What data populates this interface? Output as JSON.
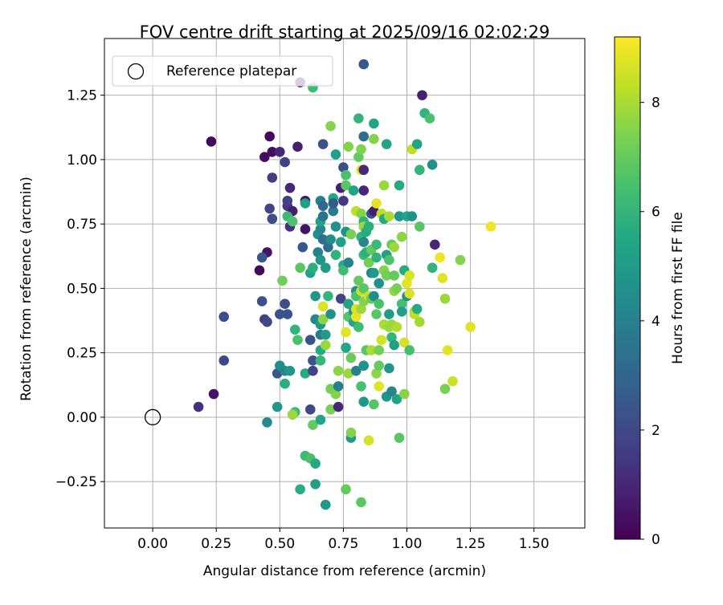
{
  "chart_data": {
    "type": "scatter",
    "title": "FOV centre drift starting at 2025/09/16 02:02:29",
    "xlabel": "Angular distance from reference (arcmin)",
    "ylabel": "Rotation from reference (arcmin)",
    "xlim": [
      -0.19,
      1.7
    ],
    "ylim": [
      -0.43,
      1.47
    ],
    "xticks": [
      0.0,
      0.25,
      0.5,
      0.75,
      1.0,
      1.25,
      1.5
    ],
    "xtick_labels": [
      "0.00",
      "0.25",
      "0.50",
      "0.75",
      "1.00",
      "1.25",
      "1.50"
    ],
    "yticks": [
      -0.25,
      0.0,
      0.25,
      0.5,
      0.75,
      1.0,
      1.25
    ],
    "ytick_labels": [
      "−0.25",
      "0.00",
      "0.25",
      "0.50",
      "0.75",
      "1.00",
      "1.25"
    ],
    "grid": true,
    "legend": {
      "placement": "top-left",
      "label": "Reference platepar"
    },
    "reference_point": {
      "x": 0.0,
      "y": 0.0
    },
    "colorbar": {
      "label": "Hours from first FF file",
      "colormap": "viridis",
      "range": [
        0,
        9.2
      ],
      "ticks": [
        0,
        2,
        4,
        6,
        8
      ],
      "tick_labels": [
        "0",
        "2",
        "4",
        "6",
        "8"
      ]
    },
    "points": [
      [
        0.23,
        1.07,
        0.2
      ],
      [
        0.24,
        0.09,
        0.5
      ],
      [
        0.18,
        0.04,
        1.3
      ],
      [
        0.28,
        0.39,
        2.1
      ],
      [
        0.28,
        0.22,
        2.0
      ],
      [
        0.42,
        0.57,
        0.2
      ],
      [
        0.44,
        1.01,
        0.3
      ],
      [
        0.46,
        1.09,
        0.2
      ],
      [
        0.47,
        1.03,
        0.3
      ],
      [
        0.45,
        0.64,
        0.5
      ],
      [
        0.43,
        0.62,
        2.5
      ],
      [
        0.43,
        0.45,
        2.2
      ],
      [
        0.44,
        0.38,
        1.8
      ],
      [
        0.45,
        0.37,
        2.0
      ],
      [
        0.46,
        0.81,
        1.8
      ],
      [
        0.47,
        0.93,
        1.7
      ],
      [
        0.47,
        0.77,
        2.2
      ],
      [
        0.5,
        1.03,
        1.0
      ],
      [
        0.52,
        0.99,
        1.8
      ],
      [
        0.53,
        0.82,
        1.5
      ],
      [
        0.54,
        0.89,
        1.0
      ],
      [
        0.55,
        0.8,
        0.8
      ],
      [
        0.54,
        0.74,
        1.3
      ],
      [
        0.57,
        1.05,
        0.8
      ],
      [
        0.58,
        1.3,
        0.4
      ],
      [
        0.6,
        0.84,
        0.4
      ],
      [
        0.6,
        0.73,
        0.5
      ],
      [
        0.52,
        0.44,
        2.2
      ],
      [
        0.5,
        0.4,
        2.3
      ],
      [
        0.53,
        0.4,
        2.4
      ],
      [
        0.49,
        0.17,
        2.5
      ],
      [
        0.5,
        0.2,
        4.5
      ],
      [
        0.52,
        0.18,
        4.2
      ],
      [
        0.54,
        0.18,
        4.8
      ],
      [
        0.52,
        0.13,
        5.8
      ],
      [
        0.49,
        0.04,
        4.9
      ],
      [
        0.45,
        -0.02,
        4.4
      ],
      [
        0.51,
        0.53,
        7.2
      ],
      [
        0.53,
        0.84,
        1.8
      ],
      [
        0.53,
        0.78,
        6.2
      ],
      [
        0.55,
        0.76,
        6.6
      ],
      [
        0.56,
        0.34,
        6.0
      ],
      [
        0.57,
        0.3,
        6.5
      ],
      [
        0.56,
        0.02,
        6.2
      ],
      [
        0.55,
        0.01,
        7.8
      ],
      [
        0.58,
        0.58,
        6.8
      ],
      [
        0.59,
        0.66,
        2.5
      ],
      [
        0.6,
        0.83,
        5.2
      ],
      [
        0.6,
        0.17,
        5.6
      ],
      [
        0.58,
        -0.28,
        5.7
      ],
      [
        0.6,
        -0.15,
        6.2
      ],
      [
        0.62,
        -0.16,
        6.5
      ],
      [
        0.63,
        -0.03,
        7.0
      ],
      [
        0.64,
        -0.18,
        5.5
      ],
      [
        0.64,
        -0.26,
        5.2
      ],
      [
        0.68,
        -0.34,
        4.9
      ],
      [
        0.62,
        0.03,
        2.0
      ],
      [
        0.62,
        0.3,
        2.3
      ],
      [
        0.63,
        0.22,
        2.3
      ],
      [
        0.63,
        0.18,
        1.8
      ],
      [
        0.62,
        0.56,
        5.2
      ],
      [
        0.63,
        0.58,
        5.8
      ],
      [
        0.63,
        1.28,
        6.3
      ],
      [
        0.64,
        0.47,
        4.8
      ],
      [
        0.64,
        0.38,
        4.2
      ],
      [
        0.65,
        0.64,
        4.0
      ],
      [
        0.65,
        0.71,
        4.5
      ],
      [
        0.66,
        0.73,
        4.2
      ],
      [
        0.66,
        0.76,
        5.3
      ],
      [
        0.66,
        0.84,
        4.0
      ],
      [
        0.67,
        0.82,
        3.0
      ],
      [
        0.67,
        0.78,
        3.5
      ],
      [
        0.67,
        0.69,
        3.3
      ],
      [
        0.67,
        1.06,
        2.3
      ],
      [
        0.66,
        0.61,
        4.8
      ],
      [
        0.66,
        0.32,
        3.8
      ],
      [
        0.66,
        0.26,
        5.6
      ],
      [
        0.66,
        0.22,
        6.1
      ],
      [
        0.66,
        -0.01,
        5.4
      ],
      [
        0.66,
        0.36,
        5.0
      ],
      [
        0.67,
        0.43,
        8.7
      ],
      [
        0.67,
        0.38,
        7.6
      ],
      [
        0.68,
        0.28,
        7.8
      ],
      [
        0.68,
        0.32,
        5.0
      ],
      [
        0.68,
        0.58,
        5.0
      ],
      [
        0.69,
        0.47,
        6.0
      ],
      [
        0.69,
        0.66,
        3.2
      ],
      [
        0.7,
        0.69,
        4.5
      ],
      [
        0.7,
        0.4,
        4.6
      ],
      [
        0.7,
        1.13,
        7.5
      ],
      [
        0.7,
        0.11,
        7.2
      ],
      [
        0.7,
        0.03,
        7.3
      ],
      [
        0.71,
        0.8,
        3.8
      ],
      [
        0.71,
        0.85,
        5.5
      ],
      [
        0.72,
        1.02,
        5.2
      ],
      [
        0.71,
        0.83,
        2.6
      ],
      [
        0.72,
        0.63,
        5.9
      ],
      [
        0.72,
        0.74,
        4.6
      ],
      [
        0.72,
        0.09,
        7.5
      ],
      [
        0.73,
        0.18,
        7.6
      ],
      [
        0.73,
        0.04,
        1.0
      ],
      [
        0.73,
        0.12,
        4.0
      ],
      [
        0.74,
        0.68,
        5.2
      ],
      [
        0.74,
        0.46,
        1.8
      ],
      [
        0.74,
        0.89,
        0.8
      ],
      [
        0.75,
        0.97,
        2.2
      ],
      [
        0.75,
        0.84,
        1.5
      ],
      [
        0.75,
        0.59,
        5.6
      ],
      [
        0.75,
        0.57,
        6.3
      ],
      [
        0.76,
        0.9,
        6.8
      ],
      [
        0.76,
        0.94,
        6.5
      ],
      [
        0.76,
        0.72,
        4.6
      ],
      [
        0.76,
        0.27,
        5.5
      ],
      [
        0.76,
        -0.28,
        7.0
      ],
      [
        0.76,
        0.33,
        8.8
      ],
      [
        0.77,
        1.05,
        7.5
      ],
      [
        0.77,
        0.6,
        4.0
      ],
      [
        0.77,
        0.44,
        5.4
      ],
      [
        0.77,
        0.17,
        7.8
      ],
      [
        0.77,
        0.39,
        6.7
      ],
      [
        0.78,
        0.71,
        7.3
      ],
      [
        0.78,
        0.23,
        7.1
      ],
      [
        0.78,
        -0.08,
        5.0
      ],
      [
        0.78,
        -0.06,
        7.5
      ],
      [
        0.79,
        0.88,
        5.3
      ],
      [
        0.79,
        0.41,
        4.8
      ],
      [
        0.79,
        0.37,
        5.5
      ],
      [
        0.8,
        0.8,
        8.3
      ],
      [
        0.8,
        0.39,
        8.9
      ],
      [
        0.8,
        0.42,
        8.7
      ],
      [
        0.8,
        0.49,
        4.4
      ],
      [
        0.8,
        0.18,
        4.0
      ],
      [
        0.8,
        0.47,
        6.5
      ],
      [
        0.81,
        1.16,
        6.0
      ],
      [
        0.81,
        1.01,
        7.0
      ],
      [
        0.81,
        0.53,
        7.0
      ],
      [
        0.81,
        0.35,
        6.3
      ],
      [
        0.82,
        1.04,
        7.4
      ],
      [
        0.82,
        0.96,
        8.8
      ],
      [
        0.82,
        0.79,
        7.5
      ],
      [
        0.82,
        0.7,
        6.0
      ],
      [
        0.82,
        0.49,
        8.5
      ],
      [
        0.82,
        0.42,
        7.8
      ],
      [
        0.82,
        0.12,
        6.5
      ],
      [
        0.82,
        -0.33,
        6.8
      ],
      [
        0.83,
        1.37,
        2.5
      ],
      [
        0.83,
        1.09,
        3.4
      ],
      [
        0.83,
        0.96,
        1.0
      ],
      [
        0.83,
        0.88,
        1.0
      ],
      [
        0.83,
        0.76,
        5.9
      ],
      [
        0.83,
        0.74,
        7.8
      ],
      [
        0.83,
        0.68,
        4.2
      ],
      [
        0.83,
        0.63,
        6.2
      ],
      [
        0.83,
        0.5,
        6.8
      ],
      [
        0.83,
        0.45,
        7.5
      ],
      [
        0.83,
        0.2,
        4.6
      ],
      [
        0.83,
        0.06,
        4.9
      ],
      [
        0.84,
        0.72,
        5.6
      ],
      [
        0.84,
        0.64,
        5.8
      ],
      [
        0.84,
        0.26,
        6.8
      ],
      [
        0.85,
        0.6,
        7.2
      ],
      [
        0.85,
        0.47,
        8.5
      ],
      [
        0.85,
        -0.09,
        8.6
      ],
      [
        0.85,
        0.74,
        5.8
      ],
      [
        0.86,
        0.65,
        7.0
      ],
      [
        0.86,
        0.56,
        4.0
      ],
      [
        0.86,
        0.26,
        8.0
      ],
      [
        0.86,
        0.46,
        7.0
      ],
      [
        0.86,
        0.79,
        2.3
      ],
      [
        0.87,
        1.14,
        5.4
      ],
      [
        0.87,
        1.08,
        7.5
      ],
      [
        0.87,
        0.56,
        5.0
      ],
      [
        0.87,
        0.47,
        4.5
      ],
      [
        0.87,
        0.05,
        6.7
      ],
      [
        0.87,
        0.8,
        0.8
      ],
      [
        0.88,
        0.83,
        8.8
      ],
      [
        0.88,
        0.67,
        6.2
      ],
      [
        0.88,
        0.62,
        5.9
      ],
      [
        0.88,
        0.4,
        6.8
      ],
      [
        0.88,
        0.17,
        7.6
      ],
      [
        0.89,
        0.52,
        4.6
      ],
      [
        0.89,
        0.44,
        6.5
      ],
      [
        0.89,
        0.26,
        7.2
      ],
      [
        0.89,
        0.12,
        8.8
      ],
      [
        0.89,
        0.2,
        7.0
      ],
      [
        0.9,
        0.79,
        8.3
      ],
      [
        0.9,
        0.3,
        8.6
      ],
      [
        0.91,
        0.77,
        5.6
      ],
      [
        0.91,
        0.57,
        7.5
      ],
      [
        0.91,
        0.36,
        8.0
      ],
      [
        0.91,
        0.9,
        7.8
      ],
      [
        0.92,
        1.06,
        5.4
      ],
      [
        0.92,
        0.63,
        5.2
      ],
      [
        0.92,
        0.55,
        7.2
      ],
      [
        0.92,
        0.08,
        4.7
      ],
      [
        0.93,
        0.78,
        8.0
      ],
      [
        0.93,
        0.61,
        6.6
      ],
      [
        0.93,
        0.4,
        5.0
      ],
      [
        0.93,
        0.35,
        7.8
      ],
      [
        0.93,
        0.19,
        4.8
      ],
      [
        0.94,
        0.67,
        7.0
      ],
      [
        0.94,
        0.36,
        7.8
      ],
      [
        0.94,
        0.1,
        4.2
      ],
      [
        0.94,
        0.31,
        6.0
      ],
      [
        0.95,
        0.66,
        7.8
      ],
      [
        0.95,
        0.55,
        7.0
      ],
      [
        0.95,
        0.49,
        7.7
      ],
      [
        0.95,
        0.28,
        5.2
      ],
      [
        0.96,
        0.5,
        7.3
      ],
      [
        0.96,
        0.07,
        5.3
      ],
      [
        0.96,
        0.35,
        8.1
      ],
      [
        0.97,
        0.9,
        5.6
      ],
      [
        0.97,
        0.78,
        4.8
      ],
      [
        0.97,
        -0.08,
        6.8
      ],
      [
        0.98,
        0.7,
        7.6
      ],
      [
        0.98,
        0.44,
        6.4
      ],
      [
        0.98,
        0.41,
        5.2
      ],
      [
        0.99,
        0.57,
        5.6
      ],
      [
        0.99,
        0.29,
        8.6
      ],
      [
        0.99,
        0.09,
        7.5
      ],
      [
        1.0,
        0.78,
        5.4
      ],
      [
        1.0,
        0.52,
        8.8
      ],
      [
        1.0,
        0.47,
        4.6
      ],
      [
        1.01,
        0.55,
        8.7
      ],
      [
        1.01,
        0.48,
        8.7
      ],
      [
        1.01,
        0.26,
        6.4
      ],
      [
        1.02,
        1.04,
        8.3
      ],
      [
        1.02,
        0.78,
        4.6
      ],
      [
        1.03,
        0.41,
        7.7
      ],
      [
        1.03,
        0.4,
        8.3
      ],
      [
        1.04,
        1.06,
        5.4
      ],
      [
        1.04,
        0.42,
        5.6
      ],
      [
        1.05,
        0.96,
        6.0
      ],
      [
        1.05,
        0.74,
        6.8
      ],
      [
        1.05,
        0.37,
        7.9
      ],
      [
        1.06,
        1.25,
        0.8
      ],
      [
        1.07,
        1.18,
        6.0
      ],
      [
        1.09,
        1.16,
        6.5
      ],
      [
        1.1,
        0.98,
        4.6
      ],
      [
        1.1,
        0.58,
        6.0
      ],
      [
        1.11,
        0.67,
        1.0
      ],
      [
        1.13,
        0.62,
        9.0
      ],
      [
        1.14,
        0.54,
        8.8
      ],
      [
        1.15,
        0.46,
        7.8
      ],
      [
        1.15,
        0.11,
        7.3
      ],
      [
        1.16,
        0.26,
        8.8
      ],
      [
        1.18,
        0.14,
        8.5
      ],
      [
        1.21,
        0.61,
        7.5
      ],
      [
        1.25,
        0.35,
        8.8
      ],
      [
        1.33,
        0.74,
        9.0
      ]
    ]
  }
}
